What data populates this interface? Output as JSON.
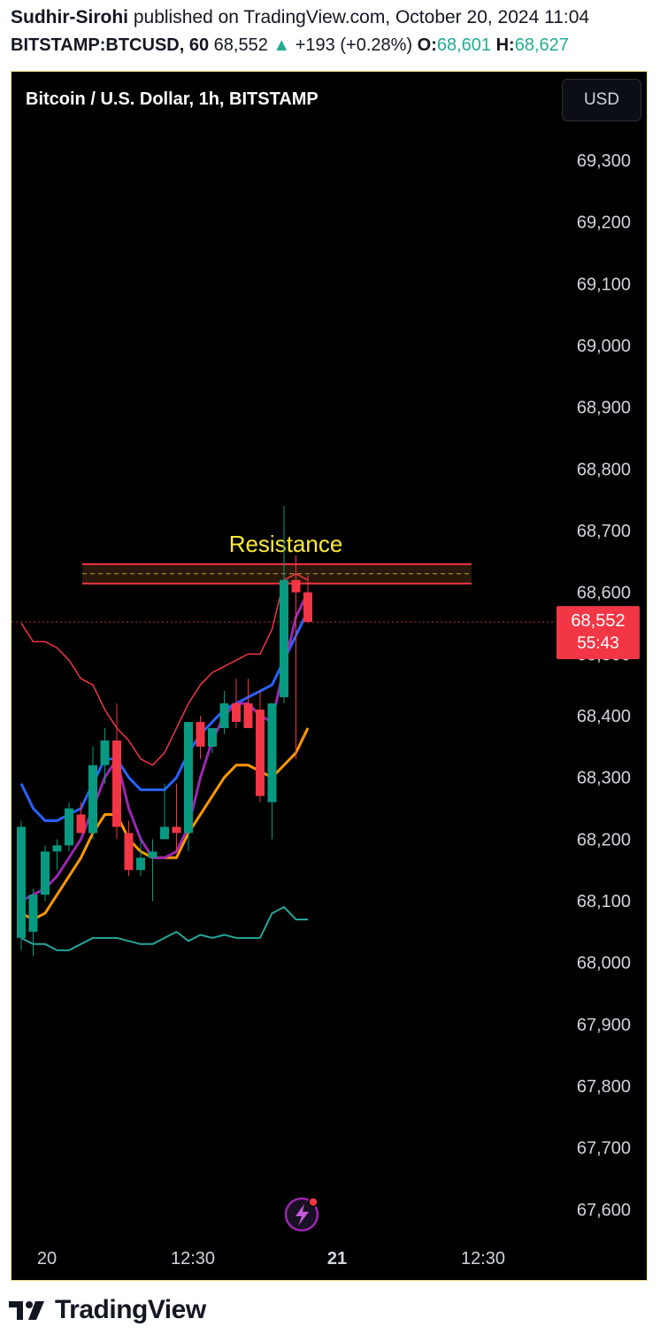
{
  "header": {
    "author": "Sudhir-Sirohi",
    "published_text": "published on TradingView.com, October 20, 2024 11:04",
    "symbol": "BITSTAMP:BTCUSD, 60",
    "price": "68,552",
    "up_arrow": "▲",
    "change": "+193 (+0.28%)",
    "open_label": "O:",
    "open_value": "68,601",
    "high_label": "H:",
    "high_value": "68,627"
  },
  "chart_title": "Bitcoin / U.S. Dollar, 1h, BITSTAMP",
  "currency_button": "USD",
  "last_price_label": "68,552",
  "countdown_label": "55:43",
  "footer": {
    "brand": "TradingView"
  },
  "colors": {
    "up": "#089981",
    "down": "#f23645",
    "bb": "#f23645",
    "ma_blue": "#2962ff",
    "ma_purple": "#9c27b0",
    "ma_orange": "#ff9800",
    "lower_line": "#26a69a",
    "annotation": "#ffeb3b"
  },
  "chart_data": {
    "type": "candlestick",
    "timeframe": "1h",
    "y_ticks": [
      69300,
      69200,
      69100,
      69000,
      68900,
      68800,
      68700,
      68600,
      68500,
      68400,
      68300,
      68200,
      68100,
      68000,
      67900,
      67800,
      67700,
      67600
    ],
    "y_tick_labels": [
      "69,300",
      "69,200",
      "69,100",
      "69,000",
      "68,900",
      "68,800",
      "68,700",
      "68,600",
      "68,500",
      "68,400",
      "68,300",
      "68,200",
      "68,100",
      "68,000",
      "67,900",
      "67,800",
      "67,700",
      "67,600"
    ],
    "x_labels": [
      {
        "label": "20",
        "bold": false
      },
      {
        "label": "12:30",
        "bold": false
      },
      {
        "label": "21",
        "bold": true
      },
      {
        "label": "12:30",
        "bold": false
      }
    ],
    "candles": [
      {
        "o": 68040,
        "h": 68230,
        "l": 68020,
        "c": 68220
      },
      {
        "o": 68050,
        "h": 68120,
        "l": 68010,
        "c": 68110
      },
      {
        "o": 68110,
        "h": 68190,
        "l": 68100,
        "c": 68180
      },
      {
        "o": 68180,
        "h": 68200,
        "l": 68150,
        "c": 68190
      },
      {
        "o": 68190,
        "h": 68260,
        "l": 68180,
        "c": 68250
      },
      {
        "o": 68240,
        "h": 68260,
        "l": 68210,
        "c": 68210
      },
      {
        "o": 68210,
        "h": 68350,
        "l": 68200,
        "c": 68320
      },
      {
        "o": 68320,
        "h": 68380,
        "l": 68290,
        "c": 68360
      },
      {
        "o": 68360,
        "h": 68420,
        "l": 68200,
        "c": 68220
      },
      {
        "o": 68210,
        "h": 68230,
        "l": 68140,
        "c": 68150
      },
      {
        "o": 68150,
        "h": 68200,
        "l": 68140,
        "c": 68170
      },
      {
        "o": 68170,
        "h": 68200,
        "l": 68100,
        "c": 68180
      },
      {
        "o": 68200,
        "h": 68290,
        "l": 68200,
        "c": 68220
      },
      {
        "o": 68220,
        "h": 68290,
        "l": 68180,
        "c": 68210
      },
      {
        "o": 68210,
        "h": 68390,
        "l": 68180,
        "c": 68390
      },
      {
        "o": 68390,
        "h": 68400,
        "l": 68330,
        "c": 68350
      },
      {
        "o": 68350,
        "h": 68380,
        "l": 68340,
        "c": 68380
      },
      {
        "o": 68380,
        "h": 68440,
        "l": 68370,
        "c": 68420
      },
      {
        "o": 68420,
        "h": 68460,
        "l": 68380,
        "c": 68390
      },
      {
        "o": 68420,
        "h": 68460,
        "l": 68380,
        "c": 68380
      },
      {
        "o": 68410,
        "h": 68440,
        "l": 68260,
        "c": 68270
      },
      {
        "o": 68260,
        "h": 68420,
        "l": 68200,
        "c": 68420
      },
      {
        "o": 68430,
        "h": 68740,
        "l": 68420,
        "c": 68620
      },
      {
        "o": 68620,
        "h": 68660,
        "l": 68330,
        "c": 68600
      },
      {
        "o": 68600,
        "h": 68627,
        "l": 68550,
        "c": 68552
      }
    ],
    "bollinger_upper": [
      68550,
      68520,
      68520,
      68510,
      68490,
      68460,
      68450,
      68410,
      68380,
      68360,
      68330,
      68320,
      68340,
      68380,
      68420,
      68450,
      68470,
      68480,
      68490,
      68500,
      68500,
      68540,
      68620,
      68630,
      68620
    ],
    "ma_blue": [
      68290,
      68250,
      68230,
      68230,
      68240,
      68250,
      68290,
      68330,
      68330,
      68300,
      68280,
      68280,
      68280,
      68300,
      68340,
      68370,
      68390,
      68410,
      68420,
      68430,
      68440,
      68450,
      68490,
      68530,
      68570
    ],
    "ma_purple": [
      68100,
      68110,
      68120,
      68140,
      68170,
      68200,
      68250,
      68300,
      68330,
      68250,
      68200,
      68170,
      68170,
      68180,
      68220,
      68300,
      68360,
      68400,
      68420,
      68420,
      68400,
      68390,
      68480,
      68560,
      68600
    ],
    "ma_orange": [
      68080,
      68070,
      68080,
      68110,
      68140,
      68170,
      68210,
      68240,
      68240,
      68200,
      68180,
      68170,
      68170,
      68170,
      68210,
      68240,
      68270,
      68300,
      68320,
      68320,
      68310,
      68300,
      68320,
      68340,
      68380
    ],
    "lower_line": [
      68040,
      68030,
      68030,
      68020,
      68020,
      68030,
      68040,
      68040,
      68040,
      68035,
      68030,
      68030,
      68040,
      68050,
      68035,
      68045,
      68040,
      68045,
      68040,
      68040,
      68040,
      68080,
      68090,
      68070,
      68070
    ],
    "resistance": {
      "label": "Resistance",
      "low": 68620,
      "high": 68640
    },
    "last_price": 68552
  }
}
